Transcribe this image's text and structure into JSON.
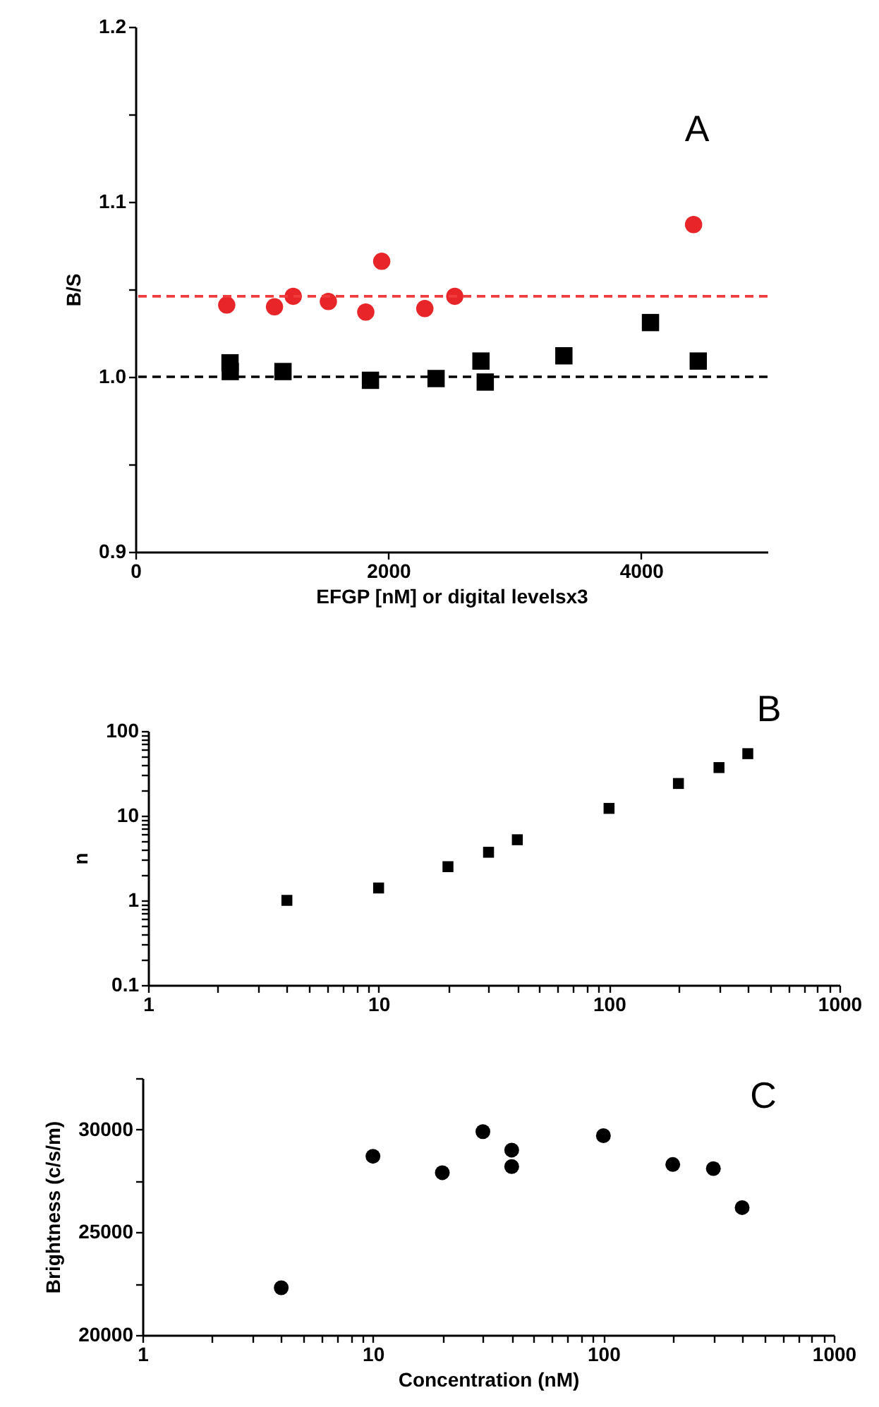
{
  "chart_data": [
    {
      "type": "scatter",
      "xlabel": "EFGP [nM] or digital levelsx3",
      "ylabel": "B/S",
      "annotations": [
        "A"
      ],
      "xlim": [
        0,
        5000
      ],
      "xticks": [
        0,
        2000,
        4000
      ],
      "ylim": [
        0.9,
        1.2
      ],
      "yticks": [
        {
          "value": 0.9,
          "label": "0.9"
        },
        {
          "value": 0.95,
          "label": null
        },
        {
          "value": 1.0,
          "label": "1.0"
        },
        {
          "value": 1.05,
          "label": null
        },
        {
          "value": 1.1,
          "label": "1.1"
        },
        {
          "value": 1.15,
          "label": null
        },
        {
          "value": 1.2,
          "label": "1.2"
        }
      ],
      "series": [
        {
          "color": "#e8262a",
          "marker": "circle",
          "x": [
            722,
            1100,
            1248,
            1526,
            1822,
            1948,
            2289,
            2526,
            4415
          ],
          "values": [
            1.041,
            1.04,
            1.046,
            1.043,
            1.037,
            1.066,
            1.039,
            1.046,
            1.087
          ]
        },
        {
          "color": "#000000",
          "marker": "square",
          "x": [
            748,
            750,
            1167,
            1859,
            2378,
            2733,
            2767,
            3389,
            4074,
            4452
          ],
          "values": [
            1.008,
            1.003,
            1.003,
            0.998,
            0.999,
            1.009,
            0.997,
            1.012,
            1.031,
            1.009
          ]
        }
      ],
      "ref_lines": [
        {
          "axis": "y",
          "value": 1.046,
          "color": "#f03c3c",
          "line_style": "dashed"
        },
        {
          "axis": "y",
          "value": 1.0,
          "color": "#000000",
          "line_style": "dashed"
        }
      ]
    },
    {
      "type": "scatter",
      "ylabel": "n",
      "annotations": [
        "B"
      ],
      "log": "xy",
      "marker": "square",
      "xlim": [
        1,
        1000
      ],
      "xticks": [
        1,
        {
          "value": 2,
          "label": null
        },
        {
          "value": 3,
          "label": null
        },
        {
          "value": 4,
          "label": null
        },
        {
          "value": 5,
          "label": null
        },
        {
          "value": 6,
          "label": null
        },
        {
          "value": 7,
          "label": null
        },
        {
          "value": 8,
          "label": null
        },
        {
          "value": 9,
          "label": null
        },
        10,
        {
          "value": 20,
          "label": null
        },
        {
          "value": 30,
          "label": null
        },
        {
          "value": 40,
          "label": null
        },
        {
          "value": 50,
          "label": null
        },
        {
          "value": 60,
          "label": null
        },
        {
          "value": 70,
          "label": null
        },
        {
          "value": 80,
          "label": null
        },
        {
          "value": 90,
          "label": null
        },
        100,
        {
          "value": 200,
          "label": null
        },
        {
          "value": 300,
          "label": null
        },
        {
          "value": 400,
          "label": null
        },
        {
          "value": 500,
          "label": null
        },
        {
          "value": 600,
          "label": null
        },
        {
          "value": 700,
          "label": null
        },
        {
          "value": 800,
          "label": null
        },
        {
          "value": 900,
          "label": null
        },
        1000
      ],
      "ylim": [
        0.1,
        100
      ],
      "yticks": [
        0.1,
        {
          "value": 0.2,
          "label": null
        },
        {
          "value": 0.3,
          "label": null
        },
        {
          "value": 0.4,
          "label": null
        },
        {
          "value": 0.5,
          "label": null
        },
        {
          "value": 0.6,
          "label": null
        },
        {
          "value": 0.7,
          "label": null
        },
        {
          "value": 0.8,
          "label": null
        },
        {
          "value": 0.9,
          "label": null
        },
        1,
        {
          "value": 2,
          "label": null
        },
        {
          "value": 3,
          "label": null
        },
        {
          "value": 4,
          "label": null
        },
        {
          "value": 5,
          "label": null
        },
        {
          "value": 6,
          "label": null
        },
        {
          "value": 7,
          "label": null
        },
        {
          "value": 8,
          "label": null
        },
        {
          "value": 9,
          "label": null
        },
        10,
        {
          "value": 20,
          "label": null
        },
        {
          "value": 30,
          "label": null
        },
        {
          "value": 40,
          "label": null
        },
        {
          "value": 50,
          "label": null
        },
        {
          "value": 60,
          "label": null
        },
        {
          "value": 70,
          "label": null
        },
        {
          "value": 80,
          "label": null
        },
        {
          "value": 90,
          "label": null
        },
        100
      ],
      "x": [
        4,
        10,
        20,
        30,
        40,
        100,
        200,
        300,
        400
      ],
      "values": [
        1.0,
        1.4,
        2.5,
        3.7,
        5.2,
        12.2,
        24,
        37,
        54
      ],
      "color": "#000000"
    },
    {
      "type": "scatter",
      "xlabel": "Concentration (nM)",
      "ylabel": "Brightness (c/s/m)",
      "annotations": [
        "C"
      ],
      "log": "x",
      "marker": "circle",
      "xlim": [
        1,
        1000
      ],
      "xticks": [
        1,
        {
          "value": 2,
          "label": null
        },
        {
          "value": 3,
          "label": null
        },
        {
          "value": 4,
          "label": null
        },
        {
          "value": 5,
          "label": null
        },
        {
          "value": 6,
          "label": null
        },
        {
          "value": 7,
          "label": null
        },
        {
          "value": 8,
          "label": null
        },
        {
          "value": 9,
          "label": null
        },
        10,
        {
          "value": 20,
          "label": null
        },
        {
          "value": 30,
          "label": null
        },
        {
          "value": 40,
          "label": null
        },
        {
          "value": 50,
          "label": null
        },
        {
          "value": 60,
          "label": null
        },
        {
          "value": 70,
          "label": null
        },
        {
          "value": 80,
          "label": null
        },
        {
          "value": 90,
          "label": null
        },
        100,
        {
          "value": 200,
          "label": null
        },
        {
          "value": 300,
          "label": null
        },
        {
          "value": 400,
          "label": null
        },
        {
          "value": 500,
          "label": null
        },
        {
          "value": 600,
          "label": null
        },
        {
          "value": 700,
          "label": null
        },
        {
          "value": 800,
          "label": null
        },
        {
          "value": 900,
          "label": null
        },
        1000
      ],
      "ylim": [
        20000,
        32500
      ],
      "yticks": [
        20000,
        {
          "value": 22500,
          "label": null
        },
        25000,
        {
          "value": 27500,
          "label": null
        },
        30000,
        {
          "value": 32500,
          "label": null
        }
      ],
      "x": [
        4,
        10,
        20,
        30,
        40,
        40,
        100,
        200,
        300,
        400
      ],
      "values": [
        22300,
        28700,
        27900,
        29900,
        29000,
        28200,
        29700,
        28300,
        28100,
        26200
      ],
      "color": "#000000"
    }
  ]
}
